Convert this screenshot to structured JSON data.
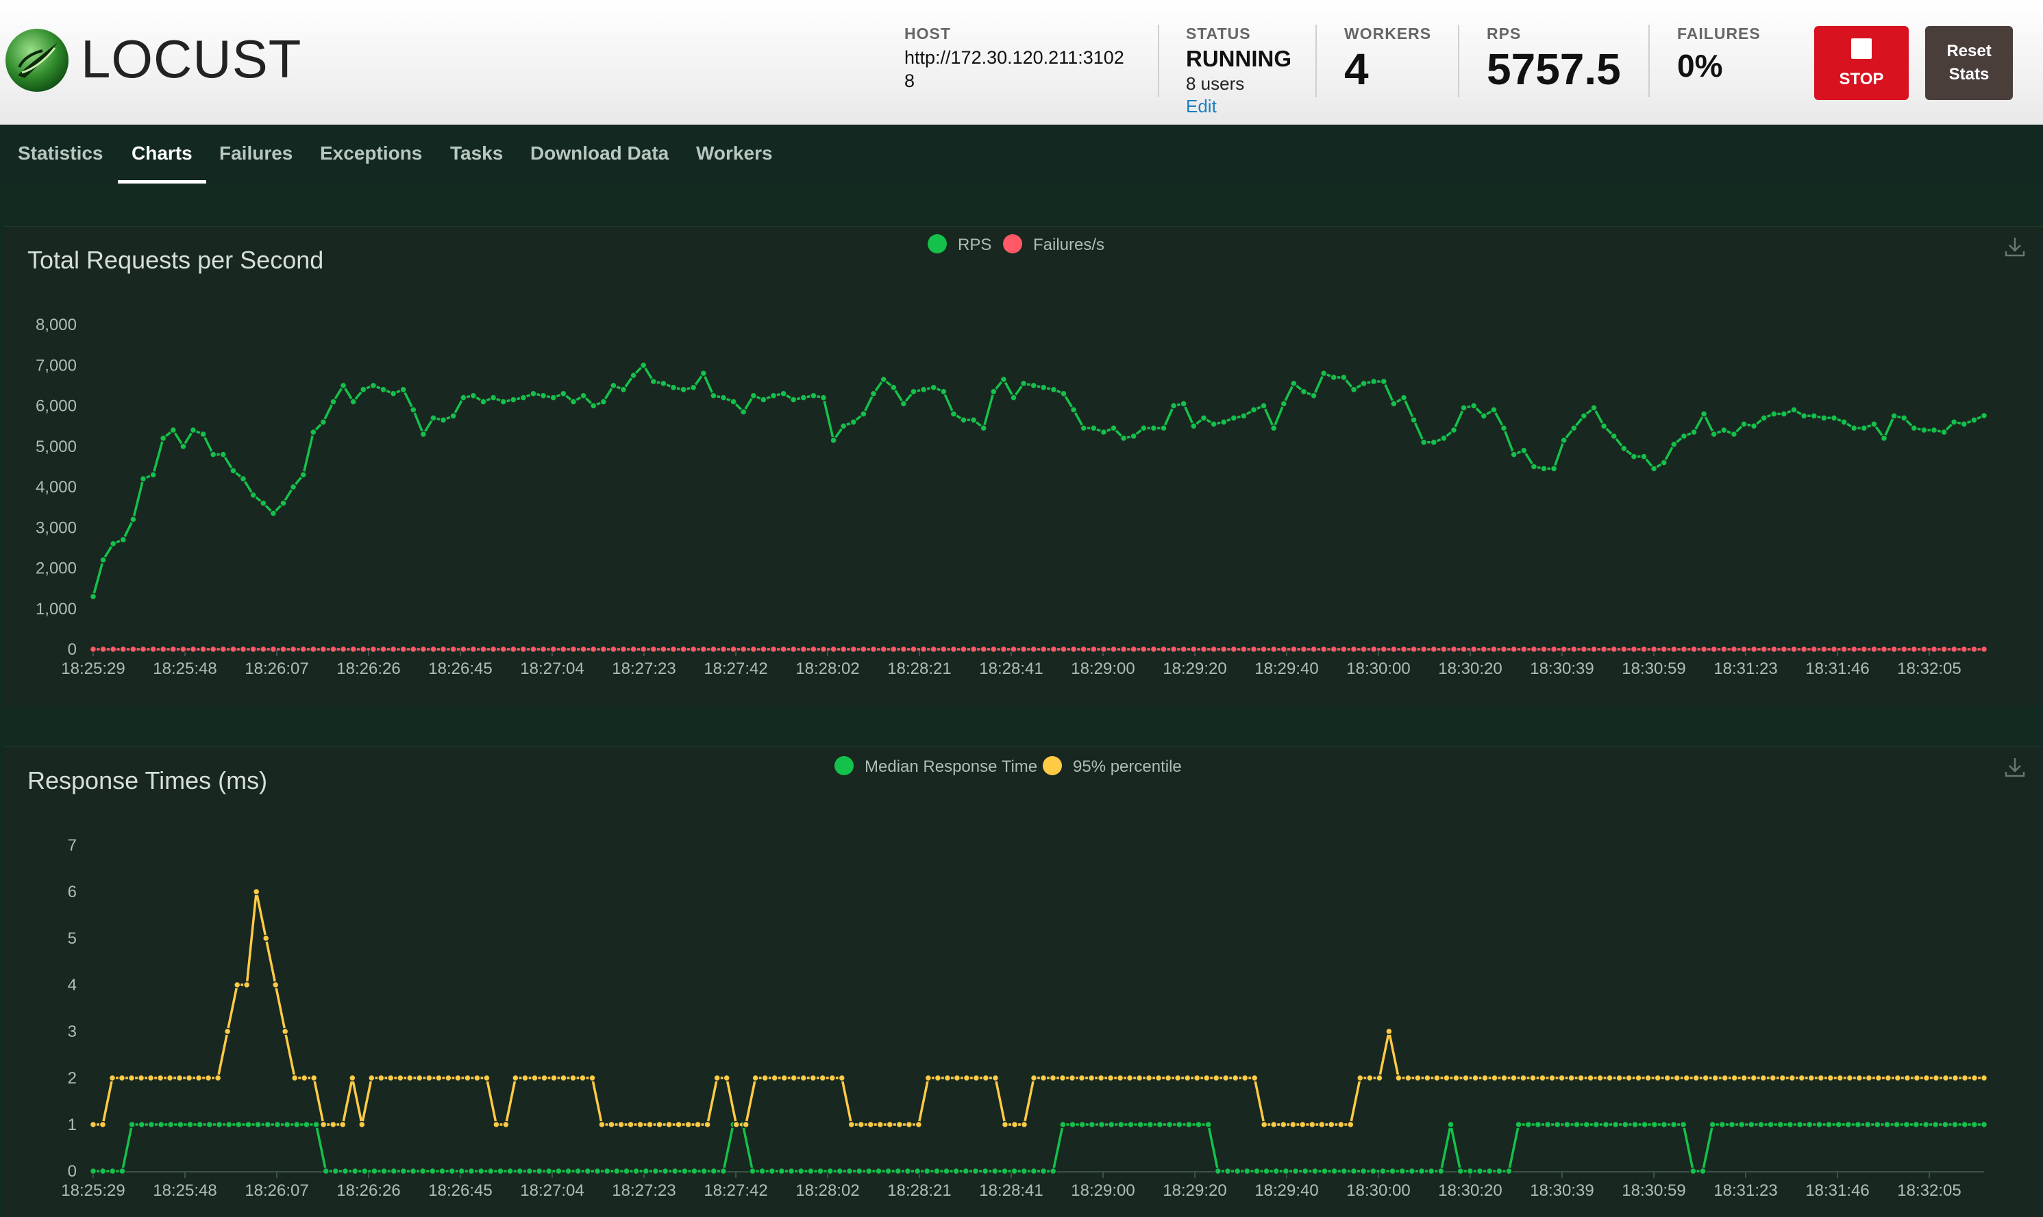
{
  "header": {
    "logo_text": "LOCUST",
    "host": {
      "label": "HOST",
      "value": "http://172.30.120.211:31028"
    },
    "status": {
      "label": "STATUS",
      "value": "RUNNING",
      "users": "8 users",
      "edit": "Edit"
    },
    "workers": {
      "label": "WORKERS",
      "value": "4"
    },
    "rps": {
      "label": "RPS",
      "value": "5757.5"
    },
    "failures": {
      "label": "FAILURES",
      "value": "0%"
    },
    "stop_label": "STOP",
    "reset_label": "Reset Stats"
  },
  "nav": {
    "tabs": [
      "Statistics",
      "Charts",
      "Failures",
      "Exceptions",
      "Tasks",
      "Download Data",
      "Workers"
    ],
    "active": "Charts"
  },
  "colors": {
    "green": "#14c14b",
    "red": "#ff5867",
    "yellow": "#ffcb45",
    "accent_stop": "#d8121f"
  },
  "chart_data": [
    {
      "type": "line",
      "title": "Total Requests per Second",
      "legend": [
        "RPS",
        "Failures/s"
      ],
      "legend_position": "top-center",
      "x_ticks": [
        "18:25:29",
        "18:25:48",
        "18:26:07",
        "18:26:26",
        "18:26:45",
        "18:27:04",
        "18:27:23",
        "18:27:42",
        "18:28:02",
        "18:28:21",
        "18:28:41",
        "18:29:00",
        "18:29:20",
        "18:29:40",
        "18:30:00",
        "18:30:20",
        "18:30:39",
        "18:30:59",
        "18:31:23",
        "18:31:46",
        "18:32:05"
      ],
      "ylim": [
        0,
        8000
      ],
      "y_ticks": [
        "0",
        "1,000",
        "2,000",
        "3,000",
        "4,000",
        "5,000",
        "6,000",
        "7,000",
        "8,000"
      ],
      "series": [
        {
          "name": "RPS",
          "values": [
            1300,
            2200,
            2600,
            2700,
            3200,
            4200,
            4300,
            5200,
            5400,
            5000,
            5400,
            5300,
            4800,
            4800,
            4400,
            4200,
            3800,
            3600,
            3350,
            3600,
            4000,
            4300,
            5350,
            5600,
            6100,
            6500,
            6100,
            6400,
            6500,
            6400,
            6300,
            6400,
            5900,
            5300,
            5700,
            5650,
            5750,
            6200,
            6250,
            6100,
            6200,
            6100,
            6150,
            6200,
            6300,
            6250,
            6200,
            6300,
            6100,
            6250,
            6000,
            6100,
            6500,
            6400,
            6750,
            7000,
            6600,
            6550,
            6450,
            6400,
            6450,
            6800,
            6250,
            6200,
            6100,
            5850,
            6250,
            6150,
            6250,
            6300,
            6150,
            6200,
            6250,
            6200,
            5150,
            5500,
            5600,
            5800,
            6300,
            6650,
            6450,
            6050,
            6350,
            6400,
            6450,
            6350,
            5800,
            5650,
            5650,
            5450,
            6350,
            6650,
            6200,
            6550,
            6500,
            6450,
            6400,
            6300,
            5900,
            5450,
            5450,
            5350,
            5450,
            5200,
            5250,
            5450,
            5450,
            5450,
            6000,
            6050,
            5500,
            5700,
            5550,
            5600,
            5700,
            5750,
            5900,
            6000,
            5450,
            6050,
            6550,
            6350,
            6250,
            6800,
            6700,
            6700,
            6400,
            6550,
            6600,
            6600,
            6050,
            6200,
            5650,
            5100,
            5100,
            5200,
            5400,
            5950,
            6000,
            5750,
            5900,
            5450,
            4800,
            4900,
            4500,
            4450,
            4450,
            5150,
            5450,
            5750,
            5950,
            5500,
            5250,
            4950,
            4750,
            4750,
            4450,
            4600,
            5050,
            5250,
            5350,
            5800,
            5300,
            5400,
            5300,
            5550,
            5500,
            5700,
            5800,
            5800,
            5900,
            5750,
            5750,
            5700,
            5700,
            5600,
            5450,
            5450,
            5550,
            5200,
            5750,
            5700,
            5450,
            5400,
            5400,
            5350,
            5600,
            5550,
            5650,
            5757
          ]
        },
        {
          "name": "Failures/s",
          "values": "constant-0"
        }
      ]
    },
    {
      "type": "line",
      "title": "Response Times (ms)",
      "legend": [
        "Median Response Time",
        "95% percentile"
      ],
      "legend_position": "top-center",
      "x_ticks": [
        "18:25:29",
        "18:25:48",
        "18:26:07",
        "18:26:26",
        "18:26:45",
        "18:27:04",
        "18:27:23",
        "18:27:42",
        "18:28:02",
        "18:28:21",
        "18:28:41",
        "18:29:00",
        "18:29:20",
        "18:29:40",
        "18:30:00",
        "18:30:20",
        "18:30:39",
        "18:30:59",
        "18:31:23",
        "18:31:46",
        "18:32:05"
      ],
      "ylim": [
        0,
        7
      ],
      "y_ticks": [
        "0",
        "1",
        "2",
        "3",
        "4",
        "5",
        "6",
        "7"
      ],
      "series": [
        {
          "name": "Median Response Time",
          "values": [
            0,
            0,
            0,
            0,
            1,
            1,
            1,
            1,
            1,
            1,
            1,
            1,
            1,
            1,
            1,
            1,
            1,
            1,
            1,
            1,
            1,
            1,
            1,
            1,
            0,
            0,
            0,
            0,
            0,
            0,
            0,
            0,
            0,
            0,
            0,
            0,
            0,
            0,
            0,
            0,
            0,
            0,
            0,
            0,
            0,
            0,
            0,
            0,
            0,
            0,
            0,
            0,
            0,
            0,
            0,
            0,
            0,
            0,
            0,
            0,
            0,
            0,
            0,
            0,
            0,
            0,
            1,
            1,
            0,
            0,
            0,
            0,
            0,
            0,
            0,
            0,
            0,
            0,
            0,
            0,
            0,
            0,
            0,
            0,
            0,
            0,
            0,
            0,
            0,
            0,
            0,
            0,
            0,
            0,
            0,
            0,
            0,
            0,
            0,
            0,
            1,
            1,
            1,
            1,
            1,
            1,
            1,
            1,
            1,
            1,
            1,
            1,
            1,
            1,
            1,
            1,
            0,
            0,
            0,
            0,
            0,
            0,
            0,
            0,
            0,
            0,
            0,
            0,
            0,
            0,
            0,
            0,
            0,
            0,
            0,
            0,
            0,
            0,
            0,
            0,
            1,
            0,
            0,
            0,
            0,
            0,
            0,
            1,
            1,
            1,
            1,
            1,
            1,
            1,
            1,
            1,
            1,
            1,
            1,
            1,
            1,
            1,
            1,
            1,
            1,
            0,
            0,
            1,
            1,
            1,
            1,
            1,
            1,
            1,
            1,
            1,
            1,
            1,
            1,
            1,
            1,
            1,
            1,
            1,
            1,
            1,
            1,
            1,
            1,
            1,
            1,
            1,
            1,
            1,
            1,
            1
          ]
        },
        {
          "name": "95% percentile",
          "values": [
            1,
            1,
            2,
            2,
            2,
            2,
            2,
            2,
            2,
            2,
            2,
            2,
            2,
            2,
            3,
            4,
            4,
            6,
            5,
            4,
            3,
            2,
            2,
            2,
            1,
            1,
            1,
            2,
            1,
            2,
            2,
            2,
            2,
            2,
            2,
            2,
            2,
            2,
            2,
            2,
            2,
            2,
            1,
            1,
            2,
            2,
            2,
            2,
            2,
            2,
            2,
            2,
            2,
            1,
            1,
            1,
            1,
            1,
            1,
            1,
            1,
            1,
            1,
            1,
            1,
            2,
            2,
            1,
            1,
            2,
            2,
            2,
            2,
            2,
            2,
            2,
            2,
            2,
            2,
            1,
            1,
            1,
            1,
            1,
            1,
            1,
            1,
            2,
            2,
            2,
            2,
            2,
            2,
            2,
            2,
            1,
            1,
            1,
            2,
            2,
            2,
            2,
            2,
            2,
            2,
            2,
            2,
            2,
            2,
            2,
            2,
            2,
            2,
            2,
            2,
            2,
            2,
            2,
            2,
            2,
            2,
            2,
            1,
            1,
            1,
            1,
            1,
            1,
            1,
            1,
            1,
            1,
            2,
            2,
            2,
            3,
            2,
            2,
            2,
            2,
            2,
            2,
            2,
            2,
            2,
            2,
            2,
            2,
            2,
            2,
            2,
            2,
            2,
            2,
            2,
            2,
            2,
            2,
            2,
            2,
            2,
            2,
            2,
            2,
            2,
            2,
            2,
            2,
            2,
            2,
            2,
            2,
            2,
            2,
            2,
            2,
            2,
            2,
            2,
            2,
            2,
            2,
            2,
            2,
            2,
            2,
            2,
            2,
            2,
            2,
            2,
            2,
            2,
            2,
            2,
            2,
            2,
            2
          ]
        }
      ]
    }
  ]
}
